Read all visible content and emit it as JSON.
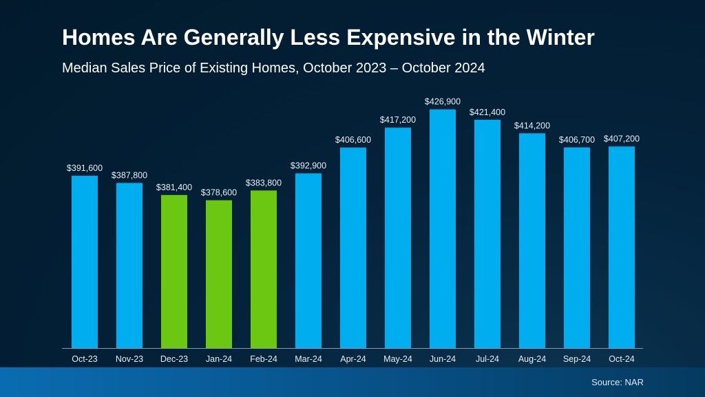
{
  "title": "Homes Are Generally Less Expensive in the Winter",
  "subtitle": "Median Sales Price of Existing Homes, October 2023 – October 2024",
  "source": "Source: NAR",
  "colors": {
    "summer": "#00aeef",
    "winter": "#6cc712",
    "label": "#e6edf2"
  },
  "chart_data": {
    "type": "bar",
    "title": "Homes Are Generally Less Expensive in the Winter",
    "subtitle": "Median Sales Price of Existing Homes, October 2023 – October 2024",
    "categories": [
      "Oct-23",
      "Nov-23",
      "Dec-23",
      "Jan-24",
      "Feb-24",
      "Mar-24",
      "Apr-24",
      "May-24",
      "Jun-24",
      "Jul-24",
      "Aug-24",
      "Sep-24",
      "Oct-24"
    ],
    "values": [
      391600,
      387800,
      381400,
      378600,
      383800,
      392900,
      406600,
      417200,
      426900,
      421400,
      414200,
      406700,
      407200
    ],
    "data_labels": [
      "$391,600",
      "$387,800",
      "$381,400",
      "$378,600",
      "$383,800",
      "$392,900",
      "$406,600",
      "$417,200",
      "$426,900",
      "$421,400",
      "$414,200",
      "$406,700",
      "$407,200"
    ],
    "highlighted": [
      false,
      false,
      true,
      true,
      true,
      false,
      false,
      false,
      false,
      false,
      false,
      false,
      false
    ],
    "ylim": [
      300000,
      440000
    ],
    "xlabel": "",
    "ylabel": "",
    "grid": false,
    "legend": "none"
  }
}
